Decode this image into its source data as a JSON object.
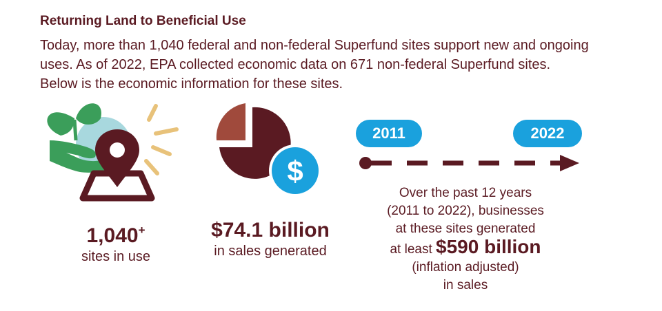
{
  "header": {
    "title": "Returning Land to Beneficial Use",
    "intro": "Today, more than 1,040 federal and non-federal Superfund sites support new and ongoing uses. As of 2022, EPA collected economic data on 671 non-federal Superfund sites. Below is the economic information for these sites."
  },
  "stats": [
    {
      "number": "1,040",
      "suffix": "+",
      "label": "sites in use"
    },
    {
      "number": "$74.1 billion",
      "label": "in sales generated"
    }
  ],
  "timeline": {
    "start_year": "2011",
    "end_year": "2022",
    "line1": "Over the past 12 years",
    "line2": "(2011 to 2022), businesses",
    "line3": "at these sites generated",
    "line4_pre": "at least ",
    "line4_big": "$590 billion",
    "line5": "(inflation adjusted)",
    "line6": "in sales"
  },
  "colors": {
    "maroon": "#5a1a22",
    "blue": "#1aa1dd",
    "green": "#3b9e5a",
    "light_teal": "#a8d8de",
    "gold": "#e8c27a",
    "rust": "#a04a3c"
  },
  "icons": [
    "hand-plant-location-icon",
    "pie-chart-dollar-icon",
    "timeline-arrow-icon"
  ]
}
